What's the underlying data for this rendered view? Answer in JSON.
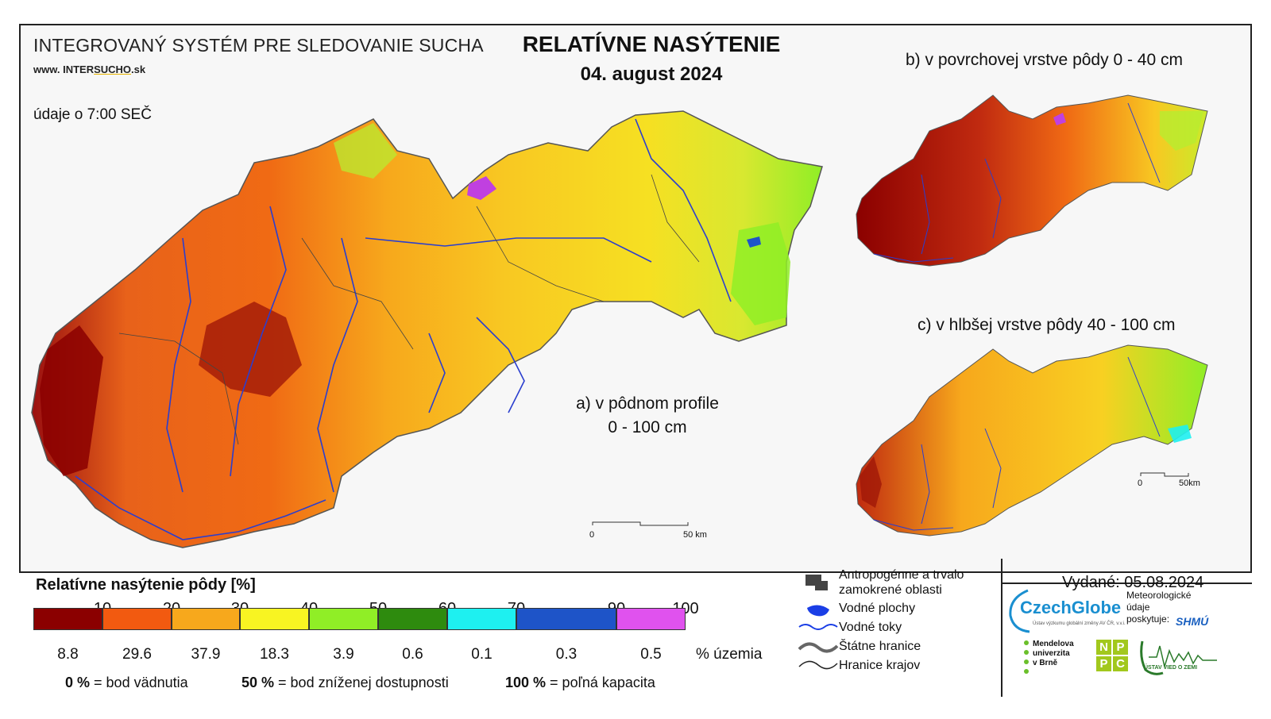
{
  "header": {
    "system_title": "INTEGROVANÝ SYSTÉM PRE SLEDOVANIE SUCHA",
    "site_prefix": "www. INTER",
    "site_mid": "SUCHO",
    "site_suffix": ".sk",
    "data_time": "údaje o 7:00 SEČ",
    "title": "RELATÍVNE NASÝTENIE",
    "date": "04. august 2024"
  },
  "maps": {
    "a_label_line1": "a) v pôdnom profile",
    "a_label_line2": "0 - 100 cm",
    "b_label": "b) v povrchovej vrstve pôdy 0 - 40 cm",
    "c_label": "c) v hlbšej vrstve pôdy 40 - 100 cm",
    "scale_main_start": "0",
    "scale_main_end": "50 km",
    "scale_small_start": "0",
    "scale_small_end": "50km"
  },
  "legend": {
    "title": "Relatívne nasýtenie pôdy [%]",
    "ticks": [
      "10",
      "20",
      "30",
      "40",
      "50",
      "60",
      "70",
      "90",
      "100"
    ],
    "colors": [
      "#8b0000",
      "#f25a10",
      "#f7a81c",
      "#f8f422",
      "#90ee26",
      "#2e8b0e",
      "#1ef0f0",
      "#1e54c8",
      "#e052ee"
    ],
    "area_percent": [
      "8.8",
      "29.6",
      "37.9",
      "18.3",
      "3.9",
      "0.6",
      "0.1",
      "0.3",
      "0.5"
    ],
    "area_unit": "% územia",
    "def1_value": "0 %",
    "def1_text": " = bod vädnutia",
    "def2_value": "50 %",
    "def2_text": " = bod zníženej dostupnosti",
    "def3_value": "100 %",
    "def3_text": " = poľná kapacita"
  },
  "symbols": {
    "anthropogenic_line1": "Antropogénne a trvalo",
    "anthropogenic_line2": "zamokrené oblasti",
    "water_bodies": "Vodné plochy",
    "rivers": "Vodné toky",
    "state_border": "Štátne hranice",
    "region_border": "Hranice krajov"
  },
  "footer": {
    "issued": "Vydané: 05.08.2024",
    "czechglobe": "CzechGlobe",
    "czechglobe_sub": "Ústav výzkumu globální změny AV ČR, v.v.i.",
    "met_line1": "Meteorologické",
    "met_line2": "údaje",
    "met_line3": "poskytuje:",
    "shmu": "SHMÚ",
    "mendel_line1": "Mendelova",
    "mendel_line2": "univerzita",
    "mendel_line3": "v Brně",
    "npc_letters": [
      "N",
      "P",
      "P",
      "C"
    ],
    "uvz": "ÚSTAV VIED O ZEMI"
  }
}
